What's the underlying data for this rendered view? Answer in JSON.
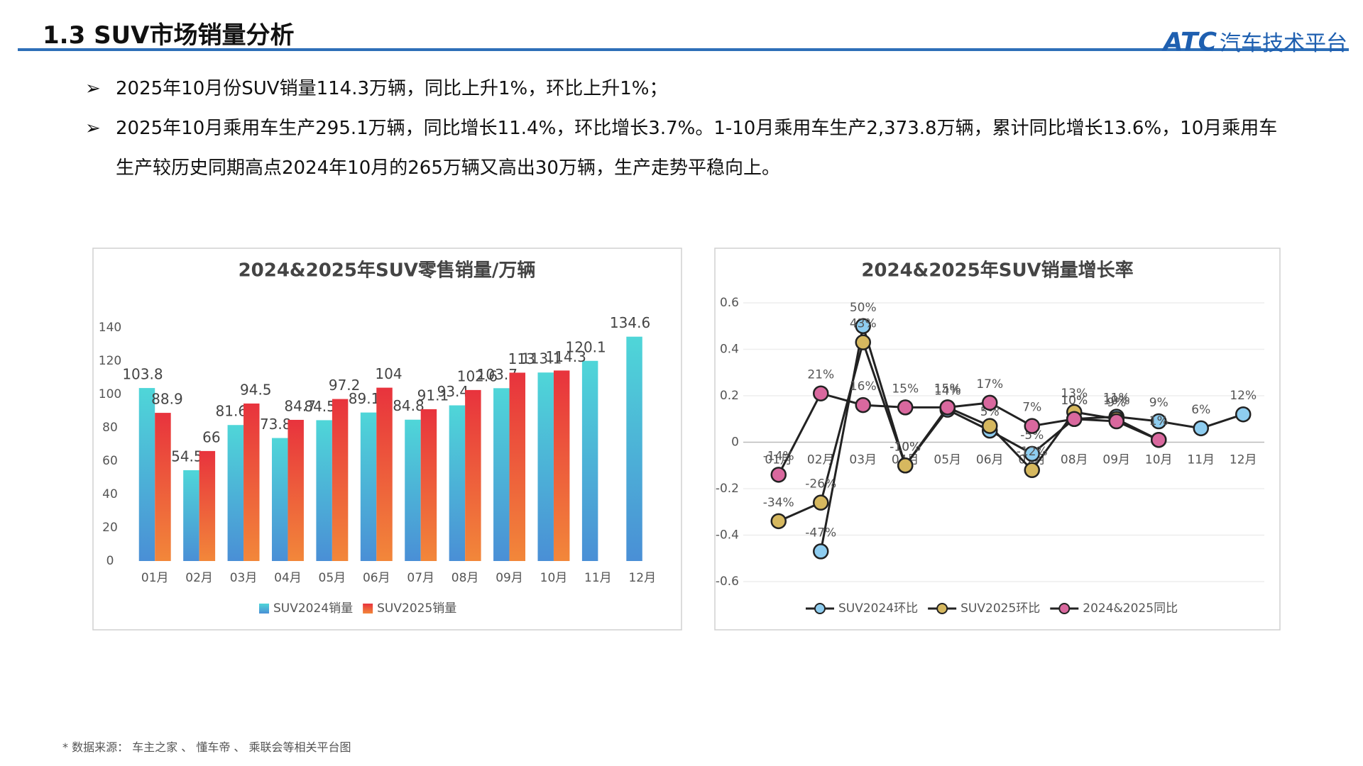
{
  "header": {
    "title": "1.3 SUV市场销量分析",
    "logo": "ATC",
    "logo_text": "汽车技术平台"
  },
  "bullets": [
    "2025年10月份SUV销量114.3万辆，同比上升1%，环比上升1%；",
    "2025年10月乘用车生产295.1万辆，同比增长11.4%，环比增长3.7%。1-10月乘用车生产2,373.8万辆，累计同比增长13.6%，10月乘用车生产较历史同期高点2024年10月的265万辆又高出30万辆，生产走势平稳向上。"
  ],
  "footer": "* 数据来源： 车主之家 、 懂车帝 、 乘联会等相关平台图",
  "chart_data": [
    {
      "type": "bar",
      "title": "2024&2025年SUV零售销量/万辆",
      "categories": [
        "01月",
        "02月",
        "03月",
        "04月",
        "05月",
        "06月",
        "07月",
        "08月",
        "09月",
        "10月",
        "11月",
        "12月"
      ],
      "series": [
        {
          "name": "SUV2024销量",
          "color": "#3fc6d3",
          "values": [
            103.8,
            54.5,
            81.6,
            73.8,
            84.5,
            89.1,
            84.8,
            93.4,
            103.7,
            113.1,
            120.1,
            134.6
          ]
        },
        {
          "name": "SUV2025销量",
          "color": "#ea3b3b",
          "values": [
            88.9,
            66,
            94.5,
            84.7,
            97.2,
            104,
            91.1,
            102.6,
            113,
            114.3,
            null,
            null
          ]
        }
      ],
      "ylim": [
        0,
        140
      ],
      "yticks": [
        0,
        20,
        40,
        60,
        80,
        100,
        120,
        140
      ],
      "grid": false,
      "legend": "bottom"
    },
    {
      "type": "line",
      "title": "2024&2025年SUV销量增长率",
      "categories": [
        "01月",
        "02月",
        "03月",
        "04月",
        "05月",
        "06月",
        "07月",
        "08月",
        "09月",
        "10月",
        "11月",
        "12月"
      ],
      "series": [
        {
          "name": "SUV2024环比",
          "color": "#8ecdf0",
          "values": [
            null,
            -0.47,
            0.5,
            -0.1,
            0.14,
            0.05,
            -0.05,
            0.1,
            0.11,
            0.09,
            0.06,
            0.12
          ],
          "value_labels": [
            null,
            "-47%",
            "50%",
            "-10%",
            "14%",
            "5%",
            "-5%",
            "10%",
            "11%",
            "9%",
            "6%",
            "12%"
          ]
        },
        {
          "name": "SUV2025环比",
          "color": "#d6b85f",
          "values": [
            -0.34,
            -0.26,
            0.43,
            -0.1,
            0.15,
            0.07,
            -0.12,
            0.13,
            0.1,
            0.01,
            null,
            null
          ],
          "value_labels": [
            "-34%",
            "-26%",
            "43%",
            "-10%",
            "15%",
            "7%",
            "-12%",
            "13%",
            "10%",
            "1%",
            null,
            null
          ]
        },
        {
          "name": "2024&2025同比",
          "color": "#d9689e",
          "values": [
            -0.14,
            0.21,
            0.16,
            0.15,
            0.15,
            0.17,
            0.07,
            0.1,
            0.09,
            0.01,
            null,
            null
          ],
          "value_labels": [
            "-14%",
            "21%",
            "16%",
            "15%",
            "15%",
            "17%",
            "7%",
            "10%",
            "9%",
            "1%",
            null,
            null
          ]
        }
      ],
      "ylim": [
        -0.6,
        0.6
      ],
      "yticks": [
        -0.6,
        -0.4,
        -0.2,
        0,
        0.2,
        0.4,
        0.6
      ],
      "grid": true,
      "legend": "bottom"
    }
  ]
}
